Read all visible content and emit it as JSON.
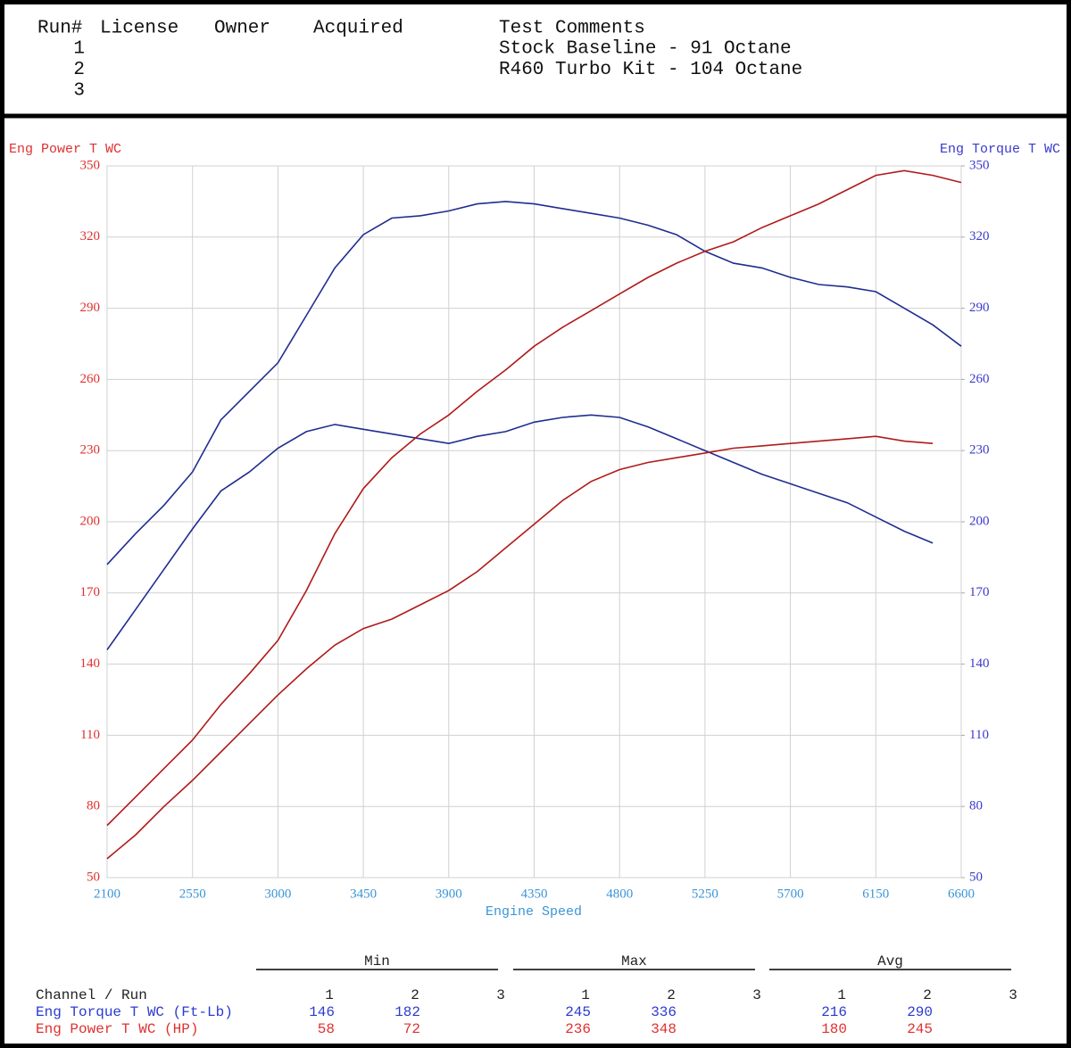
{
  "header": {
    "columns": [
      "Run#",
      "License",
      "Owner",
      "Acquired",
      "Test Comments"
    ],
    "runs": [
      {
        "run": 1,
        "comment": "Stock Baseline - 91 Octane"
      },
      {
        "run": 2,
        "comment": "R460 Turbo Kit - 104 Octane"
      },
      {
        "run": 3
      }
    ]
  },
  "chart_data": {
    "type": "line",
    "xlabel": "Engine Speed",
    "ylabel": "Eng Power T WC",
    "y2label": "Eng Torque T WC",
    "x": [
      2100,
      2250,
      2400,
      2550,
      2700,
      2850,
      3000,
      3150,
      3300,
      3450,
      3600,
      3750,
      3900,
      4050,
      4200,
      4350,
      4500,
      4650,
      4800,
      4950,
      5100,
      5250,
      5400,
      5550,
      5700,
      5850,
      6000,
      6150,
      6300,
      6450,
      6600
    ],
    "xlim": [
      2100,
      6600
    ],
    "xticks": [
      2100,
      2550,
      3000,
      3450,
      3900,
      4350,
      4800,
      5250,
      5700,
      6150,
      6600
    ],
    "ylim": [
      50,
      350
    ],
    "yticks": [
      50,
      80,
      110,
      140,
      170,
      200,
      230,
      260,
      290,
      320,
      350
    ],
    "y2lim": [
      50,
      350
    ],
    "y2ticks": [
      50,
      80,
      110,
      140,
      170,
      200,
      230,
      260,
      290,
      320,
      350
    ],
    "grid": true,
    "series": [
      {
        "color": "#1f2d8f",
        "axis": "y2",
        "values": [
          146,
          163,
          180,
          197,
          213,
          221,
          231,
          238,
          241,
          239,
          237,
          235,
          233,
          236,
          238,
          242,
          244,
          245,
          244,
          240,
          235,
          230,
          225,
          220,
          216,
          212,
          208,
          202,
          196,
          191,
          null
        ]
      },
      {
        "color": "#b01a1a",
        "values": [
          58,
          68,
          80,
          91,
          103,
          115,
          127,
          138,
          148,
          155,
          159,
          165,
          171,
          179,
          189,
          199,
          209,
          217,
          222,
          225,
          227,
          229,
          231,
          232,
          233,
          234,
          235,
          236,
          234,
          233,
          null
        ]
      },
      {
        "color": "#1f2d8f",
        "axis": "y2",
        "values": [
          182,
          195,
          207,
          221,
          243,
          255,
          267,
          287,
          307,
          321,
          328,
          329,
          331,
          334,
          335,
          334,
          332,
          330,
          328,
          325,
          321,
          314,
          309,
          307,
          303,
          300,
          299,
          297,
          290,
          283,
          274
        ]
      },
      {
        "color": "#b01a1a",
        "values": [
          72,
          84,
          96,
          108,
          123,
          136,
          150,
          171,
          195,
          214,
          227,
          237,
          245,
          255,
          264,
          274,
          282,
          289,
          296,
          303,
          309,
          314,
          318,
          324,
          329,
          334,
          340,
          346,
          348,
          346,
          343
        ]
      }
    ]
  },
  "stats": {
    "channel_header": "Channel / Run",
    "groups": [
      "Min",
      "Max",
      "Avg"
    ],
    "runs": [
      1,
      2,
      3
    ],
    "rows": [
      {
        "label": "Eng Torque T WC (Ft-Lb)",
        "color": "#2b3bd0",
        "values": [
          [
            146,
            182
          ],
          [
            245,
            336
          ],
          [
            216,
            290
          ]
        ]
      },
      {
        "label": "Eng Power T WC (HP)",
        "color": "#e03030",
        "values": [
          [
            58,
            72
          ],
          [
            236,
            348
          ],
          [
            180,
            245
          ]
        ]
      }
    ]
  }
}
